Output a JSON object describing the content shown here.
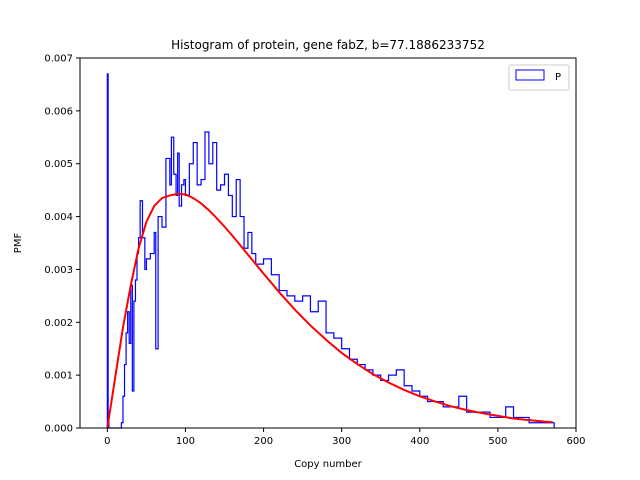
{
  "chart_data": {
    "type": "line",
    "title": "Histogram of protein, gene fabZ, b=77.1886233752",
    "xlabel": "Copy number",
    "ylabel": "PMF",
    "xlim": [
      -35,
      600
    ],
    "ylim": [
      0,
      0.007
    ],
    "x_ticks": [
      0,
      100,
      200,
      300,
      400,
      500,
      600
    ],
    "y_ticks": [
      0.0,
      0.001,
      0.002,
      0.003,
      0.004,
      0.005,
      0.006,
      0.007
    ],
    "x_tick_labels": [
      "0",
      "100",
      "200",
      "300",
      "400",
      "500",
      "600"
    ],
    "y_tick_labels": [
      "0.000",
      "0.001",
      "0.002",
      "0.003",
      "0.004",
      "0.005",
      "0.006",
      "0.007"
    ],
    "legend": {
      "position": "top-right",
      "entries": [
        "P"
      ]
    },
    "series": [
      {
        "name": "P",
        "style": "step",
        "color": "#0000ff",
        "x": [
          0,
          1,
          2,
          10,
          18,
          20,
          22,
          24,
          26,
          28,
          30,
          32,
          34,
          36,
          38,
          40,
          42,
          45,
          48,
          50,
          55,
          60,
          62,
          65,
          70,
          75,
          80,
          82,
          85,
          88,
          90,
          92,
          95,
          98,
          100,
          105,
          110,
          115,
          120,
          125,
          130,
          135,
          140,
          145,
          150,
          155,
          160,
          165,
          170,
          175,
          180,
          185,
          190,
          200,
          210,
          220,
          230,
          240,
          250,
          260,
          270,
          280,
          290,
          300,
          310,
          320,
          330,
          340,
          350,
          360,
          370,
          380,
          390,
          400,
          410,
          420,
          430,
          440,
          450,
          460,
          470,
          480,
          490,
          500,
          510,
          520,
          530,
          540,
          550,
          560,
          570
        ],
        "values": [
          0.0067,
          0.0001,
          0.0,
          0.0,
          0.0001,
          0.0006,
          0.0012,
          0.0018,
          0.0022,
          0.0016,
          0.0027,
          0.0007,
          0.0024,
          0.0028,
          0.0033,
          0.0036,
          0.0043,
          0.0036,
          0.003,
          0.0032,
          0.0033,
          0.0037,
          0.0015,
          0.004,
          0.0038,
          0.0051,
          0.0046,
          0.0055,
          0.0048,
          0.0044,
          0.0052,
          0.0042,
          0.0046,
          0.0047,
          0.0044,
          0.005,
          0.0054,
          0.0046,
          0.0047,
          0.0056,
          0.005,
          0.0054,
          0.0045,
          0.0046,
          0.0048,
          0.0044,
          0.004,
          0.0047,
          0.004,
          0.0034,
          0.0037,
          0.0033,
          0.0031,
          0.0032,
          0.0029,
          0.0026,
          0.0025,
          0.0024,
          0.0025,
          0.0022,
          0.0024,
          0.0018,
          0.0017,
          0.0015,
          0.0013,
          0.0012,
          0.0011,
          0.001,
          0.0009,
          0.001,
          0.0011,
          0.0008,
          0.0007,
          0.0006,
          0.0005,
          0.0005,
          0.0004,
          0.0004,
          0.0006,
          0.0003,
          0.0003,
          0.0003,
          0.0002,
          0.0002,
          0.0004,
          0.0002,
          0.0002,
          0.0001,
          0.0001,
          0.0001,
          0.0001
        ]
      },
      {
        "name": "",
        "style": "smooth",
        "color": "#ff0000",
        "x": [
          0,
          10,
          20,
          30,
          40,
          50,
          60,
          70,
          80,
          90,
          100,
          110,
          120,
          130,
          140,
          150,
          160,
          170,
          180,
          190,
          200,
          220,
          240,
          260,
          280,
          300,
          320,
          340,
          360,
          380,
          400,
          420,
          440,
          460,
          480,
          500,
          520,
          540,
          560,
          570
        ],
        "values": [
          0.0,
          0.00095,
          0.0019,
          0.0027,
          0.0034,
          0.0039,
          0.0042,
          0.00435,
          0.0044,
          0.00443,
          0.00442,
          0.00435,
          0.00425,
          0.00412,
          0.00397,
          0.00381,
          0.00364,
          0.00346,
          0.00328,
          0.0031,
          0.00292,
          0.00257,
          0.00224,
          0.00194,
          0.00167,
          0.00142,
          0.00121,
          0.00102,
          0.00086,
          0.00072,
          0.0006,
          0.0005,
          0.00041,
          0.00034,
          0.00028,
          0.00023,
          0.00018,
          0.00015,
          0.00012,
          0.00011
        ]
      }
    ]
  }
}
